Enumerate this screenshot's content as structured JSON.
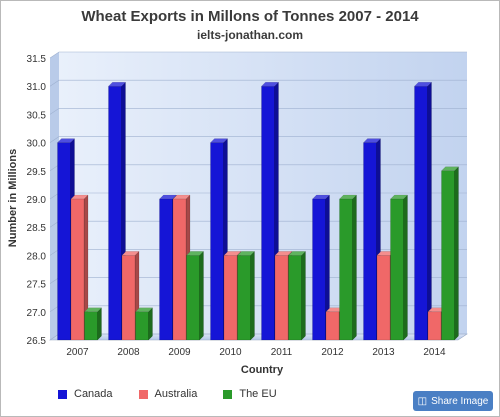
{
  "chart_data": {
    "type": "bar",
    "title": "Wheat Exports in Millons of Tonnes 2007 - 2014",
    "subtitle": "ielts-jonathan.com",
    "xlabel": "Country",
    "ylabel": "Number in Millions",
    "categories": [
      "2007",
      "2008",
      "2009",
      "2010",
      "2011",
      "2012",
      "2013",
      "2014"
    ],
    "ylim": [
      26.5,
      31.5
    ],
    "yticks": [
      "26.5",
      "27.0",
      "27.5",
      "28.0",
      "28.5",
      "29.0",
      "29.5",
      "30.0",
      "30.5",
      "31.0",
      "31.5"
    ],
    "grid": true,
    "legend_position": "bottom-left",
    "series": [
      {
        "name": "Canada",
        "color": "#1515d6",
        "values": [
          30,
          31,
          29,
          30,
          31,
          29,
          30,
          31
        ]
      },
      {
        "name": "Australia",
        "color": "#f06868",
        "values": [
          29,
          28,
          29,
          28,
          28,
          27,
          28,
          27
        ]
      },
      {
        "name": "The EU",
        "color": "#2a9a2a",
        "values": [
          27,
          27,
          28,
          28,
          28,
          29,
          29,
          29.5
        ]
      }
    ]
  },
  "share": {
    "label": "Share Image",
    "icon": "share-icon"
  }
}
